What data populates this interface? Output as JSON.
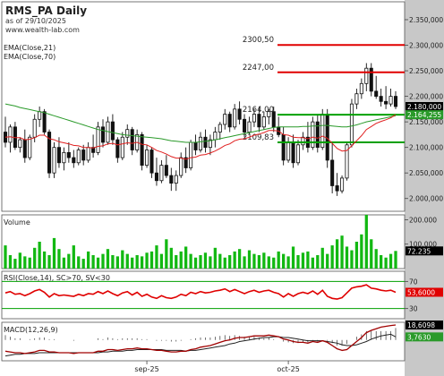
{
  "header": {
    "title": "RMS_PA Daily",
    "subtitle": "as of 29/10/2025",
    "site": "www.wealth-lab.com",
    "ema21_label": "EMA(Close,21)",
    "ema70_label": "EMA(Close,70)"
  },
  "colors": {
    "background": "#ffffff",
    "axis_bg": "#c8c8c8",
    "ema21": "#e02020",
    "ema70": "#2a9a2a",
    "volume": "#12b812",
    "rsi": "#e00000",
    "macd": "#a00000",
    "signal": "#222222",
    "level_red": "#e00000",
    "level_green": "#00a000"
  },
  "chart_data": [
    {
      "type": "candlestick",
      "ylim": [
        1975,
        2385
      ],
      "yticks": [
        "2.350,000",
        "2.300,000",
        "2.250,000",
        "2.200,000",
        "2.150,000",
        "2.100,000",
        "2.050,000",
        "2.000,000"
      ],
      "ytick_values": [
        2350,
        2300,
        2250,
        2200,
        2150,
        2100,
        2050,
        2000
      ],
      "xticks": [
        "sep-25",
        "oct-25"
      ],
      "xtick_index": [
        29,
        58
      ],
      "last_close": "2.180,000",
      "ema_last": "2.164,255",
      "levels": [
        {
          "value": 2300.5,
          "label": "2300,50",
          "color": "red"
        },
        {
          "value": 2247.0,
          "label": "2247,00",
          "color": "red"
        },
        {
          "value": 2164.0,
          "label": "2164,00",
          "color": "green"
        },
        {
          "value": 2109.83,
          "label": "2109,83",
          "color": "green"
        }
      ],
      "ohlc": [
        [
          2130,
          2160,
          2100,
          2110
        ],
        [
          2110,
          2145,
          2090,
          2140
        ],
        [
          2140,
          2150,
          2095,
          2100
        ],
        [
          2100,
          2120,
          2090,
          2115
        ],
        [
          2115,
          2135,
          2070,
          2080
        ],
        [
          2080,
          2125,
          2075,
          2120
        ],
        [
          2120,
          2165,
          2110,
          2155
        ],
        [
          2155,
          2180,
          2140,
          2170
        ],
        [
          2170,
          2175,
          2125,
          2130
        ],
        [
          2130,
          2135,
          2040,
          2050
        ],
        [
          2050,
          2110,
          2040,
          2100
        ],
        [
          2100,
          2120,
          2060,
          2070
        ],
        [
          2070,
          2100,
          2055,
          2090
        ],
        [
          2090,
          2110,
          2070,
          2080
        ],
        [
          2080,
          2095,
          2060,
          2070
        ],
        [
          2070,
          2100,
          2065,
          2095
        ],
        [
          2095,
          2105,
          2065,
          2075
        ],
        [
          2075,
          2110,
          2070,
          2100
        ],
        [
          2100,
          2125,
          2080,
          2090
        ],
        [
          2090,
          2150,
          2085,
          2140
        ],
        [
          2140,
          2155,
          2100,
          2110
        ],
        [
          2110,
          2160,
          2105,
          2150
        ],
        [
          2150,
          2165,
          2105,
          2115
        ],
        [
          2115,
          2120,
          2070,
          2080
        ],
        [
          2080,
          2130,
          2075,
          2120
        ],
        [
          2120,
          2145,
          2105,
          2135
        ],
        [
          2135,
          2140,
          2085,
          2095
        ],
        [
          2095,
          2135,
          2090,
          2125
        ],
        [
          2125,
          2130,
          2055,
          2065
        ],
        [
          2065,
          2105,
          2060,
          2095
        ],
        [
          2095,
          2100,
          2040,
          2050
        ],
        [
          2050,
          2080,
          2025,
          2035
        ],
        [
          2035,
          2075,
          2030,
          2065
        ],
        [
          2065,
          2085,
          2040,
          2045
        ],
        [
          2045,
          2060,
          2015,
          2030
        ],
        [
          2030,
          2055,
          2015,
          2045
        ],
        [
          2045,
          2090,
          2040,
          2080
        ],
        [
          2080,
          2100,
          2050,
          2060
        ],
        [
          2060,
          2115,
          2055,
          2110
        ],
        [
          2110,
          2125,
          2085,
          2095
        ],
        [
          2095,
          2130,
          2090,
          2120
        ],
        [
          2120,
          2135,
          2090,
          2100
        ],
        [
          2100,
          2125,
          2085,
          2115
        ],
        [
          2115,
          2140,
          2100,
          2130
        ],
        [
          2130,
          2150,
          2115,
          2145
        ],
        [
          2145,
          2175,
          2135,
          2165
        ],
        [
          2165,
          2170,
          2130,
          2140
        ],
        [
          2140,
          2185,
          2135,
          2175
        ],
        [
          2175,
          2190,
          2145,
          2155
        ],
        [
          2155,
          2165,
          2120,
          2130
        ],
        [
          2130,
          2160,
          2125,
          2150
        ],
        [
          2150,
          2175,
          2140,
          2165
        ],
        [
          2165,
          2180,
          2130,
          2140
        ],
        [
          2140,
          2170,
          2135,
          2160
        ],
        [
          2160,
          2175,
          2145,
          2170
        ],
        [
          2170,
          2180,
          2130,
          2140
        ],
        [
          2140,
          2160,
          2120,
          2125
        ],
        [
          2125,
          2140,
          2065,
          2075
        ],
        [
          2075,
          2120,
          2070,
          2110
        ],
        [
          2110,
          2125,
          2060,
          2070
        ],
        [
          2070,
          2115,
          2065,
          2105
        ],
        [
          2105,
          2130,
          2095,
          2120
        ],
        [
          2120,
          2150,
          2090,
          2100
        ],
        [
          2100,
          2160,
          2095,
          2150
        ],
        [
          2150,
          2165,
          2090,
          2100
        ],
        [
          2100,
          2175,
          2095,
          2165
        ],
        [
          2165,
          2175,
          2060,
          2075
        ],
        [
          2075,
          2110,
          2010,
          2025
        ],
        [
          2025,
          2050,
          2005,
          2015
        ],
        [
          2015,
          2045,
          2010,
          2040
        ],
        [
          2040,
          2110,
          2035,
          2105
        ],
        [
          2105,
          2195,
          2100,
          2185
        ],
        [
          2185,
          2215,
          2175,
          2205
        ],
        [
          2205,
          2235,
          2195,
          2225
        ],
        [
          2225,
          2265,
          2210,
          2255
        ],
        [
          2255,
          2265,
          2200,
          2210
        ],
        [
          2210,
          2240,
          2195,
          2200
        ],
        [
          2200,
          2215,
          2180,
          2190
        ],
        [
          2190,
          2220,
          2175,
          2185
        ],
        [
          2185,
          2215,
          2180,
          2200
        ],
        [
          2200,
          2210,
          2175,
          2180
        ]
      ],
      "ema21": [
        2120,
        2121,
        2119,
        2119,
        2115,
        2116,
        2119,
        2124,
        2124,
        2117,
        2115,
        2111,
        2109,
        2107,
        2104,
        2103,
        2100,
        2100,
        2099,
        2102,
        2103,
        2107,
        2108,
        2105,
        2107,
        2109,
        2108,
        2110,
        2106,
        2105,
        2100,
        2094,
        2091,
        2087,
        2082,
        2079,
        2079,
        2077,
        2080,
        2081,
        2085,
        2086,
        2089,
        2093,
        2098,
        2104,
        2107,
        2113,
        2116,
        2117,
        2120,
        2124,
        2126,
        2129,
        2133,
        2133,
        2132,
        2125,
        2124,
        2120,
        2119,
        2119,
        2117,
        2120,
        2118,
        2122,
        2118,
        2108,
        2098,
        2093,
        2094,
        2103,
        2113,
        2123,
        2135,
        2141,
        2147,
        2151,
        2154,
        2158,
        2164
      ],
      "ema70": [
        2185,
        2183,
        2181,
        2178,
        2176,
        2174,
        2172,
        2170,
        2168,
        2165,
        2162,
        2159,
        2156,
        2153,
        2150,
        2147,
        2144,
        2141,
        2138,
        2135,
        2133,
        2131,
        2129,
        2127,
        2125,
        2124,
        2123,
        2122,
        2121,
        2120,
        2119,
        2118,
        2117,
        2115,
        2113,
        2112,
        2111,
        2110,
        2110,
        2110,
        2111,
        2112,
        2113,
        2115,
        2117,
        2119,
        2121,
        2123,
        2125,
        2127,
        2129,
        2131,
        2133,
        2135,
        2137,
        2139,
        2140,
        2140,
        2140,
        2140,
        2140,
        2141,
        2141,
        2142,
        2142,
        2143,
        2143,
        2142,
        2141,
        2140,
        2140,
        2142,
        2144,
        2147,
        2150,
        2152,
        2154,
        2156,
        2158,
        2160,
        2162
      ]
    },
    {
      "type": "bar",
      "title": "Volume",
      "ylim": [
        0,
        220000
      ],
      "yticks": [
        "200.000",
        "100.000"
      ],
      "ytick_values": [
        200000,
        100000
      ],
      "last_value": "72.235",
      "values": [
        95000,
        55000,
        40000,
        65000,
        50000,
        45000,
        85000,
        110000,
        70000,
        55000,
        125000,
        80000,
        45000,
        60000,
        95000,
        50000,
        40000,
        70000,
        55000,
        45000,
        60000,
        80000,
        55000,
        50000,
        75000,
        60000,
        45000,
        55000,
        50000,
        65000,
        70000,
        95000,
        60000,
        120000,
        85000,
        55000,
        70000,
        90000,
        60000,
        45000,
        55000,
        65000,
        50000,
        85000,
        60000,
        45000,
        55000,
        70000,
        80000,
        50000,
        75000,
        60000,
        55000,
        65000,
        50000,
        45000,
        70000,
        60000,
        50000,
        90000,
        55000,
        65000,
        70000,
        45000,
        55000,
        85000,
        60000,
        95000,
        120000,
        135000,
        90000,
        75000,
        110000,
        140000,
        220000,
        120000,
        80000,
        55000,
        45000,
        60000,
        72235
      ]
    },
    {
      "type": "line",
      "title": "RSI(Close,14), SC>70, SV<30",
      "ylim": [
        15,
        85
      ],
      "yticks": [
        "70",
        "30"
      ],
      "ytick_values": [
        70,
        30
      ],
      "last_value": "53,6000",
      "values": [
        53,
        55,
        51,
        52,
        49,
        52,
        56,
        58,
        54,
        47,
        52,
        49,
        50,
        49,
        48,
        51,
        49,
        52,
        51,
        55,
        52,
        56,
        52,
        49,
        53,
        55,
        50,
        54,
        48,
        51,
        47,
        45,
        49,
        46,
        45,
        47,
        51,
        49,
        54,
        52,
        55,
        53,
        54,
        56,
        57,
        59,
        55,
        58,
        55,
        52,
        55,
        57,
        54,
        56,
        57,
        54,
        52,
        47,
        52,
        48,
        52,
        54,
        52,
        56,
        51,
        57,
        48,
        45,
        44,
        46,
        53,
        60,
        62,
        63,
        65,
        60,
        59,
        57,
        56,
        57,
        54
      ]
    },
    {
      "type": "line",
      "title": "MACD(12,26,9)",
      "ylim": [
        -26,
        22
      ],
      "last_value_macd": "18,6098",
      "last_value_signal": "3,7630",
      "macd": [
        -14,
        -15,
        -16,
        -16,
        -17,
        -16,
        -15,
        -13,
        -13,
        -15,
        -15,
        -16,
        -16,
        -16,
        -17,
        -16,
        -16,
        -16,
        -16,
        -14,
        -14,
        -12,
        -12,
        -13,
        -12,
        -11,
        -11,
        -10,
        -11,
        -11,
        -12,
        -13,
        -13,
        -14,
        -15,
        -15,
        -14,
        -14,
        -12,
        -11,
        -9,
        -8,
        -7,
        -5,
        -3,
        -1,
        0,
        2,
        3,
        3,
        4,
        5,
        5,
        5,
        6,
        5,
        4,
        1,
        0,
        -2,
        -3,
        -3,
        -4,
        -2,
        -3,
        -1,
        -3,
        -7,
        -11,
        -13,
        -12,
        -7,
        -2,
        3,
        9,
        12,
        14,
        16,
        17,
        18,
        18.6
      ],
      "signal": [
        -20,
        -19,
        -18,
        -18,
        -17,
        -17,
        -17,
        -16,
        -16,
        -16,
        -16,
        -16,
        -16,
        -16,
        -16,
        -16,
        -16,
        -16,
        -16,
        -16,
        -15,
        -15,
        -14,
        -14,
        -14,
        -13,
        -13,
        -12,
        -12,
        -12,
        -12,
        -12,
        -12,
        -13,
        -13,
        -13,
        -13,
        -14,
        -13,
        -13,
        -12,
        -11,
        -10,
        -9,
        -8,
        -7,
        -5,
        -4,
        -2,
        -1,
        0,
        1,
        2,
        3,
        3,
        4,
        4,
        3,
        3,
        2,
        1,
        0,
        -1,
        -1,
        -1,
        -1,
        -2,
        -3,
        -4,
        -6,
        -7,
        -7,
        -6,
        -4,
        -2,
        1,
        3,
        5,
        6,
        7,
        3.763
      ]
    }
  ]
}
